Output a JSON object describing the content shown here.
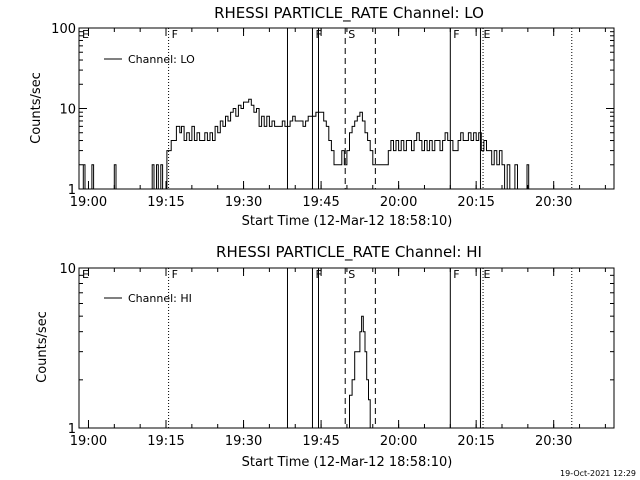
{
  "footer_timestamp": "19-Oct-2021 12:29",
  "chart_data": [
    {
      "type": "line",
      "title": "RHESSI PARTICLE_RATE Channel: LO",
      "xlabel": "Start Time (12-Mar-12 18:58:10)",
      "ylabel": "Counts/sec",
      "yscale": "log",
      "ylim": [
        1,
        100
      ],
      "xlim": [
        "18:58:10",
        "20:41:40"
      ],
      "x_ticks": [
        "19:00",
        "19:15",
        "19:30",
        "19:45",
        "20:00",
        "20:15",
        "20:30"
      ],
      "y_ticks": [
        "1",
        "10",
        "100"
      ],
      "legend": {
        "label": "Channel: LO",
        "position": "top-left"
      },
      "markers": [
        {
          "time": "18:58:10",
          "label": "E",
          "style": "solid"
        },
        {
          "time": "19:15:30",
          "label": "F",
          "style": "dotted"
        },
        {
          "time": "19:38:30",
          "label": "",
          "style": "solid"
        },
        {
          "time": "19:43:20",
          "label": "F",
          "style": "solid"
        },
        {
          "time": "19:44:30",
          "label": "",
          "style": "solid"
        },
        {
          "time": "19:49:40",
          "label": "S",
          "style": "dashed"
        },
        {
          "time": "19:55:30",
          "label": "",
          "style": "dashed"
        },
        {
          "time": "20:10:00",
          "label": "F",
          "style": "solid"
        },
        {
          "time": "20:15:50",
          "label": "E",
          "style": "solid"
        },
        {
          "time": "20:16:20",
          "label": "",
          "style": "dotted"
        },
        {
          "time": "20:33:30",
          "label": "",
          "style": "dotted"
        }
      ],
      "series": [
        {
          "name": "Channel: LO",
          "points": [
            [
              "18:58:40",
              1
            ],
            [
              "18:59:00",
              2
            ],
            [
              "18:59:20",
              1
            ],
            [
              "18:59:40",
              1
            ],
            [
              "19:00:20",
              1
            ],
            [
              "19:00:40",
              2
            ],
            [
              "19:01:00",
              1
            ],
            [
              "19:04:40",
              1
            ],
            [
              "19:05:00",
              2
            ],
            [
              "19:05:20",
              1
            ],
            [
              "19:12:00",
              1
            ],
            [
              "19:12:20",
              2
            ],
            [
              "19:12:40",
              1
            ],
            [
              "19:13:10",
              2
            ],
            [
              "19:13:30",
              1
            ],
            [
              "19:14:00",
              2
            ],
            [
              "19:14:20",
              1
            ],
            [
              "19:15:00",
              1
            ],
            [
              "19:15:10",
              3
            ],
            [
              "19:15:40",
              3
            ],
            [
              "19:16:00",
              4
            ],
            [
              "19:16:40",
              4
            ],
            [
              "19:17:00",
              6
            ],
            [
              "19:17:40",
              5
            ],
            [
              "19:18:00",
              6
            ],
            [
              "19:18:30",
              4
            ],
            [
              "19:19:00",
              5
            ],
            [
              "19:19:30",
              4
            ],
            [
              "19:20:00",
              6
            ],
            [
              "19:20:30",
              4
            ],
            [
              "19:21:00",
              5
            ],
            [
              "19:21:30",
              4
            ],
            [
              "19:22:00",
              4
            ],
            [
              "19:22:30",
              5
            ],
            [
              "19:23:00",
              4
            ],
            [
              "19:23:30",
              5
            ],
            [
              "19:24:00",
              4
            ],
            [
              "19:24:30",
              6
            ],
            [
              "19:25:00",
              5
            ],
            [
              "19:25:30",
              7
            ],
            [
              "19:26:00",
              6
            ],
            [
              "19:26:30",
              8
            ],
            [
              "19:27:00",
              7
            ],
            [
              "19:27:30",
              9
            ],
            [
              "19:28:00",
              10
            ],
            [
              "19:28:30",
              8
            ],
            [
              "19:29:00",
              11
            ],
            [
              "19:29:30",
              10
            ],
            [
              "19:30:00",
              12
            ],
            [
              "19:30:30",
              12
            ],
            [
              "19:31:00",
              13
            ],
            [
              "19:31:30",
              11
            ],
            [
              "19:32:00",
              9
            ],
            [
              "19:32:30",
              10
            ],
            [
              "19:33:00",
              6
            ],
            [
              "19:33:30",
              8
            ],
            [
              "19:34:00",
              6
            ],
            [
              "19:34:30",
              8
            ],
            [
              "19:35:00",
              6
            ],
            [
              "19:35:30",
              7
            ],
            [
              "19:36:00",
              6
            ],
            [
              "19:37:00",
              6
            ],
            [
              "19:37:30",
              7
            ],
            [
              "19:38:00",
              6
            ],
            [
              "19:38:30",
              6
            ],
            [
              "19:39:00",
              7
            ],
            [
              "19:39:30",
              8
            ],
            [
              "19:40:00",
              7
            ],
            [
              "19:41:00",
              7
            ],
            [
              "19:41:30",
              6
            ],
            [
              "19:42:00",
              7
            ],
            [
              "19:42:30",
              8
            ],
            [
              "19:43:30",
              8
            ],
            [
              "19:44:00",
              9
            ],
            [
              "19:45:00",
              9
            ],
            [
              "19:45:30",
              7
            ],
            [
              "19:46:00",
              6
            ],
            [
              "19:46:30",
              4
            ],
            [
              "19:47:00",
              3
            ],
            [
              "19:47:30",
              2
            ],
            [
              "19:48:30",
              2
            ],
            [
              "19:49:00",
              3
            ],
            [
              "19:49:30",
              2
            ],
            [
              "19:50:00",
              3
            ],
            [
              "19:50:30",
              5
            ],
            [
              "19:51:00",
              6
            ],
            [
              "19:51:30",
              7
            ],
            [
              "19:52:00",
              8
            ],
            [
              "19:52:30",
              9
            ],
            [
              "19:53:00",
              7
            ],
            [
              "19:53:30",
              5
            ],
            [
              "19:54:00",
              4
            ],
            [
              "19:54:30",
              3
            ],
            [
              "19:55:00",
              2
            ],
            [
              "19:55:30",
              2
            ],
            [
              "19:57:30",
              2
            ],
            [
              "19:58:00",
              3
            ],
            [
              "19:58:30",
              4
            ],
            [
              "19:59:00",
              3
            ],
            [
              "19:59:30",
              4
            ],
            [
              "20:00:00",
              3
            ],
            [
              "20:00:30",
              4
            ],
            [
              "20:01:00",
              3
            ],
            [
              "20:01:30",
              4
            ],
            [
              "20:02:00",
              4
            ],
            [
              "20:02:30",
              3
            ],
            [
              "20:03:00",
              4
            ],
            [
              "20:03:30",
              5
            ],
            [
              "20:04:00",
              4
            ],
            [
              "20:04:30",
              3
            ],
            [
              "20:05:00",
              4
            ],
            [
              "20:05:30",
              3
            ],
            [
              "20:06:00",
              4
            ],
            [
              "20:06:30",
              3
            ],
            [
              "20:07:00",
              4
            ],
            [
              "20:07:30",
              4
            ],
            [
              "20:08:00",
              3
            ],
            [
              "20:08:30",
              4
            ],
            [
              "20:09:00",
              5
            ],
            [
              "20:09:30",
              4
            ],
            [
              "20:10:00",
              4
            ],
            [
              "20:10:30",
              3
            ],
            [
              "20:11:00",
              3
            ],
            [
              "20:11:30",
              4
            ],
            [
              "20:12:00",
              5
            ],
            [
              "20:12:30",
              4
            ],
            [
              "20:13:00",
              4
            ],
            [
              "20:13:30",
              5
            ],
            [
              "20:14:00",
              4
            ],
            [
              "20:14:30",
              5
            ],
            [
              "20:15:00",
              4
            ],
            [
              "20:15:30",
              5
            ],
            [
              "20:16:00",
              3
            ],
            [
              "20:16:30",
              4
            ],
            [
              "20:17:00",
              3
            ],
            [
              "20:17:30",
              3
            ],
            [
              "20:18:00",
              2
            ],
            [
              "20:18:30",
              3
            ],
            [
              "20:19:00",
              2
            ],
            [
              "20:19:30",
              3
            ],
            [
              "20:20:00",
              2
            ],
            [
              "20:20:30",
              1
            ],
            [
              "20:21:00",
              2
            ],
            [
              "20:21:30",
              1
            ],
            [
              "20:22:00",
              1
            ],
            [
              "20:22:30",
              2
            ],
            [
              "20:23:00",
              1
            ],
            [
              "20:24:30",
              1
            ],
            [
              "20:24:50",
              2
            ],
            [
              "20:25:10",
              1
            ]
          ]
        }
      ]
    },
    {
      "type": "line",
      "title": "RHESSI PARTICLE_RATE Channel: HI",
      "xlabel": "Start Time (12-Mar-12 18:58:10)",
      "ylabel": "Counts/sec",
      "yscale": "log",
      "ylim": [
        1,
        10
      ],
      "xlim": [
        "18:58:10",
        "20:41:40"
      ],
      "x_ticks": [
        "19:00",
        "19:15",
        "19:30",
        "19:45",
        "20:00",
        "20:15",
        "20:30"
      ],
      "y_ticks": [
        "1",
        "10"
      ],
      "legend": {
        "label": "Channel: HI",
        "position": "top-left"
      },
      "markers": [
        {
          "time": "18:58:10",
          "label": "E",
          "style": "solid"
        },
        {
          "time": "19:15:30",
          "label": "F",
          "style": "dotted"
        },
        {
          "time": "19:38:30",
          "label": "",
          "style": "solid"
        },
        {
          "time": "19:43:20",
          "label": "F",
          "style": "solid"
        },
        {
          "time": "19:44:30",
          "label": "",
          "style": "solid"
        },
        {
          "time": "19:49:40",
          "label": "S",
          "style": "dashed"
        },
        {
          "time": "19:55:30",
          "label": "",
          "style": "dashed"
        },
        {
          "time": "20:10:00",
          "label": "F",
          "style": "solid"
        },
        {
          "time": "20:15:50",
          "label": "E",
          "style": "solid"
        },
        {
          "time": "20:16:20",
          "label": "",
          "style": "dotted"
        },
        {
          "time": "20:33:30",
          "label": "",
          "style": "dotted"
        }
      ],
      "series": [
        {
          "name": "Channel: HI",
          "points": [
            [
              "19:50:00",
              1
            ],
            [
              "19:50:30",
              1.6
            ],
            [
              "19:51:00",
              2
            ],
            [
              "19:51:30",
              3
            ],
            [
              "19:52:00",
              3
            ],
            [
              "19:52:30",
              4
            ],
            [
              "19:52:50",
              5
            ],
            [
              "19:53:10",
              4
            ],
            [
              "19:53:30",
              3
            ],
            [
              "19:53:50",
              2
            ],
            [
              "19:54:10",
              1.5
            ],
            [
              "19:54:30",
              1
            ]
          ]
        }
      ]
    }
  ]
}
